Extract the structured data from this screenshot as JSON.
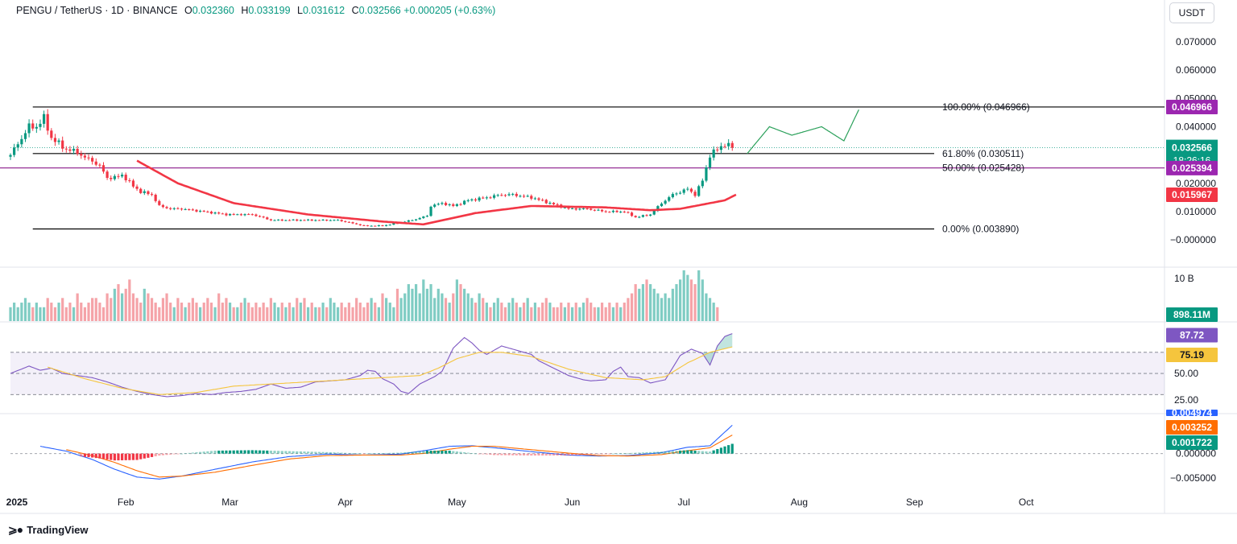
{
  "header": {
    "symbol": "PENGU / TetherUS · 1D · BINANCE",
    "o_label": "O",
    "o_value": "0.032360",
    "h_label": "H",
    "h_value": "0.033199",
    "l_label": "L",
    "l_value": "0.031612",
    "c_label": "C",
    "c_value": "0.032566",
    "change": "+0.000205 (+0.63%)"
  },
  "currency_button": "USDT",
  "brand": "TradingView",
  "chart_data": [
    {
      "type": "candlestick",
      "panel": "price",
      "title": "PENGU / TetherUS · 1D · BINANCE",
      "y_ticks": [
        "0.070000",
        "0.060000",
        "0.050000",
        "0.040000",
        "0.020000",
        "0.010000",
        "−0.000000"
      ],
      "y_tick_values": [
        0.07,
        0.06,
        0.05,
        0.04,
        0.02,
        0.01,
        0.0
      ],
      "ylim": [
        -0.0045,
        0.0785
      ],
      "x_ticks": [
        "2025",
        "Feb",
        "Mar",
        "Apr",
        "May",
        "Jun",
        "Jul",
        "Aug",
        "Sep",
        "Oct"
      ],
      "x_tick_days": [
        0,
        31,
        59,
        90,
        120,
        151,
        181,
        212,
        243,
        273
      ],
      "close_series_anchors": [
        [
          0,
          0.03
        ],
        [
          4,
          0.038
        ],
        [
          5,
          0.04
        ],
        [
          7,
          0.04
        ],
        [
          9,
          0.043
        ],
        [
          11,
          0.036
        ],
        [
          15,
          0.032
        ],
        [
          18,
          0.031
        ],
        [
          20,
          0.029
        ],
        [
          22,
          0.028
        ],
        [
          24,
          0.026
        ],
        [
          26,
          0.022
        ],
        [
          28,
          0.022
        ],
        [
          30,
          0.023
        ],
        [
          33,
          0.019
        ],
        [
          35,
          0.017
        ],
        [
          38,
          0.016
        ],
        [
          40,
          0.012
        ],
        [
          43,
          0.011
        ],
        [
          46,
          0.011
        ],
        [
          52,
          0.01
        ],
        [
          58,
          0.009
        ],
        [
          65,
          0.009
        ],
        [
          70,
          0.007
        ],
        [
          80,
          0.007
        ],
        [
          88,
          0.007
        ],
        [
          95,
          0.005
        ],
        [
          100,
          0.005
        ],
        [
          104,
          0.006
        ],
        [
          108,
          0.007
        ],
        [
          112,
          0.0085
        ],
        [
          113,
          0.012
        ],
        [
          116,
          0.013
        ],
        [
          119,
          0.012
        ],
        [
          123,
          0.014
        ],
        [
          128,
          0.015
        ],
        [
          132,
          0.016
        ],
        [
          135,
          0.016
        ],
        [
          140,
          0.015
        ],
        [
          145,
          0.013
        ],
        [
          150,
          0.011
        ],
        [
          155,
          0.011
        ],
        [
          160,
          0.01
        ],
        [
          165,
          0.01
        ],
        [
          168,
          0.008
        ],
        [
          172,
          0.009
        ],
        [
          175,
          0.013
        ],
        [
          178,
          0.016
        ],
        [
          180,
          0.017
        ],
        [
          182,
          0.018
        ],
        [
          184,
          0.016
        ],
        [
          186,
          0.021
        ],
        [
          188,
          0.03
        ],
        [
          190,
          0.032
        ],
        [
          192,
          0.034
        ],
        [
          194,
          0.0326
        ]
      ],
      "horizontal_levels": [
        {
          "label": "100.00% (0.046966)",
          "value": 0.046966,
          "color": "#000000"
        },
        {
          "label": "61.80% (0.030511)",
          "value": 0.030511,
          "color": "#000000"
        },
        {
          "label": "50.00% (0.025428)",
          "value": 0.025428,
          "color": "#8a1a8a"
        },
        {
          "label": "0.00% (0.003890)",
          "value": 0.00389,
          "color": "#000000"
        }
      ],
      "price_badges": [
        {
          "text": "0.046966",
          "value": 0.046966,
          "color": "#9c27b0"
        },
        {
          "text": "0.032566",
          "value": 0.032566,
          "color": "#089981",
          "sub": "18:26:16"
        },
        {
          "text": "0.025394",
          "value": 0.025394,
          "color": "#9c27b0"
        },
        {
          "text": "0.015967",
          "value": 0.015967,
          "color": "#f23645"
        }
      ],
      "moving_average": {
        "color": "#f23645",
        "anchors": [
          [
            34,
            0.028
          ],
          [
            45,
            0.02
          ],
          [
            60,
            0.013
          ],
          [
            80,
            0.009
          ],
          [
            100,
            0.0065
          ],
          [
            111,
            0.0055
          ],
          [
            125,
            0.0095
          ],
          [
            140,
            0.012
          ],
          [
            160,
            0.0115
          ],
          [
            172,
            0.0105
          ],
          [
            180,
            0.011
          ],
          [
            188,
            0.013
          ],
          [
            192,
            0.014
          ],
          [
            195,
            0.016
          ]
        ]
      },
      "projection_path": {
        "color": "#2aa05a",
        "anchors": [
          [
            198,
            0.0305
          ],
          [
            204,
            0.04
          ],
          [
            210,
            0.037
          ],
          [
            218,
            0.04
          ],
          [
            224,
            0.035
          ],
          [
            228,
            0.046
          ]
        ]
      }
    },
    {
      "type": "bar",
      "panel": "volume",
      "y_ticks": [
        "10 B"
      ],
      "last_value_badge": "898.11M",
      "values_b": [
        3,
        4,
        3,
        4,
        5,
        4,
        3,
        4,
        3,
        3,
        5,
        4,
        3,
        4,
        5,
        3,
        4,
        3,
        6,
        4,
        3,
        4,
        5,
        5,
        4,
        3,
        6,
        5,
        7,
        8,
        6,
        7,
        9,
        6,
        5,
        4,
        7,
        6,
        5,
        4,
        3,
        5,
        6,
        4,
        3,
        5,
        4,
        3,
        4,
        5,
        4,
        3,
        4,
        5,
        4,
        3,
        6,
        4,
        5,
        4,
        3,
        3,
        4,
        5,
        4,
        3,
        4,
        3,
        4,
        3,
        5,
        4,
        3,
        4,
        3,
        4,
        3,
        5,
        4,
        5,
        3,
        4,
        3,
        3,
        4,
        3,
        5,
        4,
        3,
        4,
        3,
        4,
        3,
        5,
        4,
        3,
        4,
        5,
        4,
        3,
        6,
        5,
        4,
        3,
        7,
        5,
        6,
        8,
        7,
        8,
        6,
        9,
        7,
        8,
        5,
        7,
        6,
        5,
        4,
        6,
        9,
        8,
        7,
        6,
        5,
        4,
        6,
        5,
        4,
        3,
        4,
        5,
        4,
        3,
        4,
        5,
        4,
        3,
        4,
        5,
        3,
        4,
        3,
        4,
        5,
        4,
        3,
        3,
        4,
        3,
        4,
        3,
        4,
        3,
        4,
        5,
        4,
        3,
        3,
        4,
        3,
        4,
        3,
        4,
        3,
        4,
        5,
        6,
        8,
        7,
        8,
        9,
        8,
        7,
        6,
        5,
        6,
        5,
        7,
        8,
        9,
        11,
        10,
        9,
        8,
        11,
        9,
        6,
        5,
        4,
        3
      ],
      "up_color": "#7fccc3",
      "down_color": "#f5a3a8"
    },
    {
      "type": "line",
      "panel": "rsi",
      "y_ticks": [
        "50.00",
        "25.00"
      ],
      "y_tick_values": [
        50,
        25
      ],
      "ylim": [
        15,
        95
      ],
      "band": [
        30,
        70
      ],
      "series": [
        {
          "name": "",
          "color": "#7e57c2",
          "badge": "87.72",
          "anchors": [
            [
              0,
              50
            ],
            [
              5,
              57
            ],
            [
              8,
              53
            ],
            [
              11,
              55
            ],
            [
              14,
              50
            ],
            [
              18,
              48
            ],
            [
              22,
              46
            ],
            [
              26,
              42
            ],
            [
              30,
              37
            ],
            [
              34,
              33
            ],
            [
              38,
              30
            ],
            [
              42,
              28
            ],
            [
              46,
              29
            ],
            [
              50,
              31
            ],
            [
              54,
              30
            ],
            [
              58,
              32
            ],
            [
              62,
              33
            ],
            [
              66,
              35
            ],
            [
              70,
              40
            ],
            [
              74,
              36
            ],
            [
              78,
              37
            ],
            [
              82,
              42
            ],
            [
              86,
              43
            ],
            [
              90,
              44
            ],
            [
              94,
              48
            ],
            [
              96,
              53
            ],
            [
              98,
              52
            ],
            [
              100,
              45
            ],
            [
              103,
              40
            ],
            [
              105,
              33
            ],
            [
              107,
              31
            ],
            [
              110,
              40
            ],
            [
              114,
              47
            ],
            [
              116,
              52
            ],
            [
              119,
              74
            ],
            [
              122,
              84
            ],
            [
              124,
              79
            ],
            [
              126,
              72
            ],
            [
              128,
              68
            ],
            [
              130,
              72
            ],
            [
              132,
              76
            ],
            [
              134,
              74
            ],
            [
              136,
              72
            ],
            [
              138,
              70
            ],
            [
              140,
              68
            ],
            [
              142,
              62
            ],
            [
              146,
              55
            ],
            [
              150,
              48
            ],
            [
              154,
              44
            ],
            [
              156,
              43
            ],
            [
              160,
              44
            ],
            [
              162,
              52
            ],
            [
              164,
              56
            ],
            [
              166,
              47
            ],
            [
              169,
              46
            ],
            [
              172,
              41
            ],
            [
              176,
              44
            ],
            [
              180,
              67
            ],
            [
              183,
              73
            ],
            [
              186,
              69
            ],
            [
              188,
              58
            ],
            [
              190,
              76
            ],
            [
              192,
              85
            ],
            [
              194,
              87.72
            ]
          ]
        },
        {
          "name": "",
          "color": "#f5c53d",
          "badge": "75.19",
          "anchors": [
            [
              10,
              56
            ],
            [
              20,
              45
            ],
            [
              30,
              36
            ],
            [
              40,
              30
            ],
            [
              50,
              32
            ],
            [
              60,
              38
            ],
            [
              70,
              40
            ],
            [
              80,
              42
            ],
            [
              90,
              44
            ],
            [
              100,
              46
            ],
            [
              110,
              48
            ],
            [
              115,
              55
            ],
            [
              120,
              64
            ],
            [
              126,
              70
            ],
            [
              132,
              70
            ],
            [
              140,
              66
            ],
            [
              150,
              54
            ],
            [
              160,
              46
            ],
            [
              170,
              44
            ],
            [
              176,
              47
            ],
            [
              182,
              60
            ],
            [
              188,
              70
            ],
            [
              194,
              75.19
            ]
          ]
        }
      ]
    },
    {
      "type": "line",
      "panel": "macd",
      "y_ticks": [
        "0.000000",
        "−0.005000"
      ],
      "y_tick_values": [
        0,
        -0.005
      ],
      "ylim": [
        -0.0068,
        0.0085
      ],
      "series": [
        {
          "name": "",
          "color": "#2962ff",
          "badge": "0.004974",
          "anchors": [
            [
              8,
              0.0015
            ],
            [
              15,
              0.0005
            ],
            [
              22,
              -0.0012
            ],
            [
              28,
              -0.0032
            ],
            [
              34,
              -0.0048
            ],
            [
              40,
              -0.0052
            ],
            [
              46,
              -0.0046
            ],
            [
              55,
              -0.0032
            ],
            [
              65,
              -0.0017
            ],
            [
              75,
              -0.0006
            ],
            [
              85,
              -0.0001
            ],
            [
              95,
              -0.0003
            ],
            [
              105,
              -0.0001
            ],
            [
              112,
              0.0007
            ],
            [
              118,
              0.0015
            ],
            [
              124,
              0.0016
            ],
            [
              130,
              0.0012
            ],
            [
              140,
              0.0004
            ],
            [
              150,
              -0.0003
            ],
            [
              158,
              -0.0005
            ],
            [
              166,
              -0.0004
            ],
            [
              175,
              0.0002
            ],
            [
              182,
              0.0013
            ],
            [
              188,
              0.0016
            ],
            [
              194,
              0.0058
            ]
          ]
        },
        {
          "name": "",
          "color": "#ff6d00",
          "badge": "0.003252",
          "anchors": [
            [
              15,
              0.0008
            ],
            [
              22,
              -0.0004
            ],
            [
              28,
              -0.0018
            ],
            [
              34,
              -0.0035
            ],
            [
              40,
              -0.0048
            ],
            [
              46,
              -0.0046
            ],
            [
              55,
              -0.0038
            ],
            [
              65,
              -0.0024
            ],
            [
              75,
              -0.0011
            ],
            [
              85,
              -0.0004
            ],
            [
              95,
              -0.0003
            ],
            [
              105,
              -0.0003
            ],
            [
              112,
              0.0001
            ],
            [
              118,
              0.0009
            ],
            [
              124,
              0.0015
            ],
            [
              130,
              0.0015
            ],
            [
              140,
              0.0008
            ],
            [
              150,
              0.0001
            ],
            [
              158,
              -0.0004
            ],
            [
              166,
              -0.0005
            ],
            [
              175,
              -0.0002
            ],
            [
              182,
              0.0006
            ],
            [
              188,
              0.0012
            ],
            [
              194,
              0.0038
            ]
          ]
        }
      ],
      "histogram_badge": "0.001722",
      "histogram_up": "#089981",
      "histogram_down": "#f23645"
    }
  ]
}
